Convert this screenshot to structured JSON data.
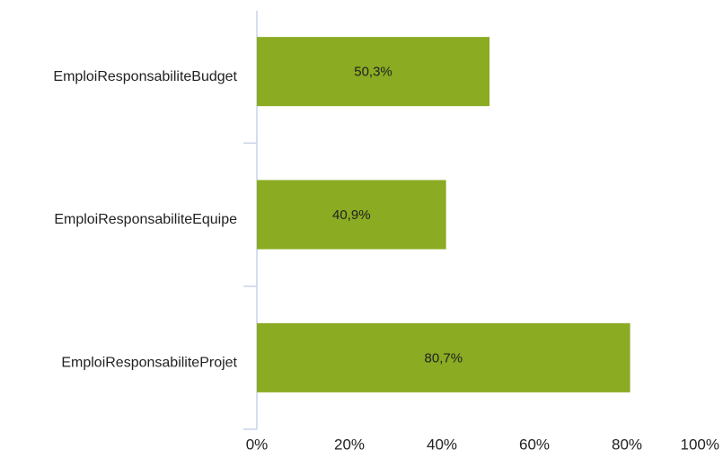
{
  "chart_data": {
    "type": "hbar",
    "categories": [
      "EmploiResponsabiliteBudget",
      "EmploiResponsabiliteEquipe",
      "EmploiResponsabiliteProjet"
    ],
    "values": [
      50.3,
      40.9,
      80.7
    ],
    "value_labels": [
      "50,3%",
      "40,9%",
      "80,7%"
    ],
    "color": "#8aab22",
    "xlim": [
      0,
      100
    ],
    "xticks": [
      {
        "value": 0,
        "label": "0%"
      },
      {
        "value": 20,
        "label": "20%"
      },
      {
        "value": 40,
        "label": "40%"
      },
      {
        "value": 60,
        "label": "60%"
      },
      {
        "value": 80,
        "label": "80%"
      },
      {
        "value": 100,
        "label": "100%"
      }
    ]
  }
}
